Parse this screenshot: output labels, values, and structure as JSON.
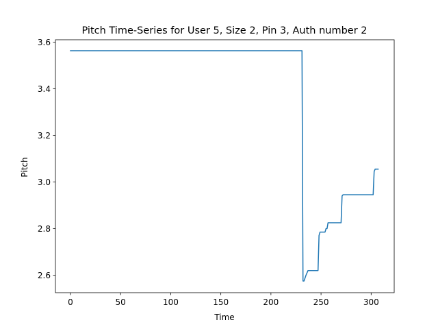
{
  "chart_data": {
    "type": "line",
    "title": "Pitch Time-Series for User 5, Size 2, Pin 3, Auth number 2",
    "xlabel": "Time",
    "ylabel": "Pitch",
    "xlim": [
      -15,
      323
    ],
    "ylim": [
      2.525,
      3.61
    ],
    "xticks": [
      0,
      50,
      100,
      150,
      200,
      250,
      300
    ],
    "xtick_labels": [
      "0",
      "50",
      "100",
      "150",
      "200",
      "250",
      "300"
    ],
    "yticks": [
      2.6,
      2.8,
      3.0,
      3.2,
      3.4,
      3.6
    ],
    "ytick_labels": [
      "2.6",
      "2.8",
      "3.0",
      "3.2",
      "3.4",
      "3.6"
    ],
    "grid": false,
    "colors": {
      "line": "#1f77b4",
      "axes": "#000000",
      "background": "#ffffff"
    },
    "series": [
      {
        "x": [
          0,
          231,
          232,
          233,
          235,
          237,
          247,
          248,
          249,
          252,
          254,
          255,
          256,
          257,
          270,
          271,
          272,
          302,
          303,
          304,
          307
        ],
        "y": [
          3.563,
          3.563,
          2.575,
          2.575,
          2.6,
          2.62,
          2.62,
          2.77,
          2.785,
          2.785,
          2.785,
          2.8,
          2.8,
          2.825,
          2.825,
          2.94,
          2.945,
          2.945,
          3.045,
          3.055,
          3.055
        ]
      }
    ]
  }
}
